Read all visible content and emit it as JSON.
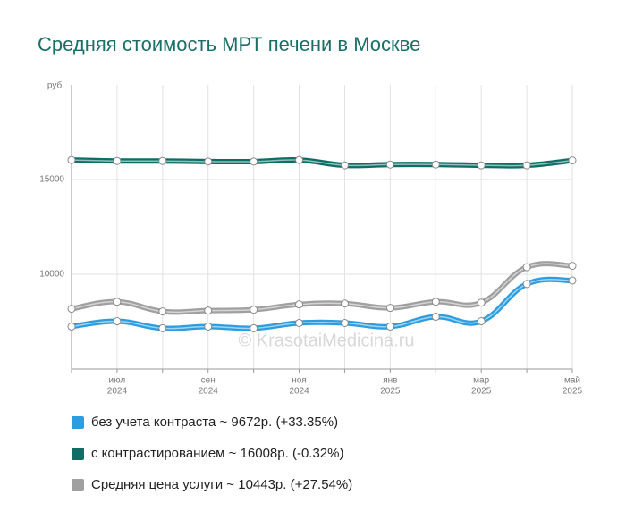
{
  "chart_data": {
    "type": "line",
    "title": "Средняя стоимость МРТ печени в Москве",
    "unit_label": "руб.",
    "watermark": "© KrasotaiMedicina.ru",
    "categories": [
      null,
      {
        "month": "июл",
        "year": "2024"
      },
      null,
      {
        "month": "сен",
        "year": "2024"
      },
      null,
      {
        "month": "ноя",
        "year": "2024"
      },
      null,
      {
        "month": "янв",
        "year": "2025"
      },
      null,
      {
        "month": "мар",
        "year": "2025"
      },
      null,
      {
        "month": "май",
        "year": "2025"
      }
    ],
    "series": [
      {
        "name": "без учета контраста ~ 9672р. (+33.35%)",
        "color": "#2d9de0",
        "values": [
          7243,
          7523,
          7150,
          7243,
          7150,
          7430,
          7430,
          7243,
          7757,
          7523,
          9486,
          9672
        ]
      },
      {
        "name": "с контрастированием ~ 16008р. (-0.32%)",
        "color": "#0e6e66",
        "values": [
          16030,
          15980,
          15980,
          15950,
          15950,
          16030,
          15750,
          15790,
          15790,
          15750,
          15750,
          16008
        ]
      },
      {
        "name": "Средняя цена услуги ~ 10443р. (+27.54%)",
        "color": "#a0a0a0",
        "values": [
          8178,
          8551,
          8037,
          8084,
          8131,
          8411,
          8458,
          8224,
          8551,
          8505,
          10374,
          10443
        ]
      }
    ],
    "ylim": [
      5000,
      20000
    ],
    "yticks": [
      10000,
      15000
    ],
    "grid": true
  }
}
